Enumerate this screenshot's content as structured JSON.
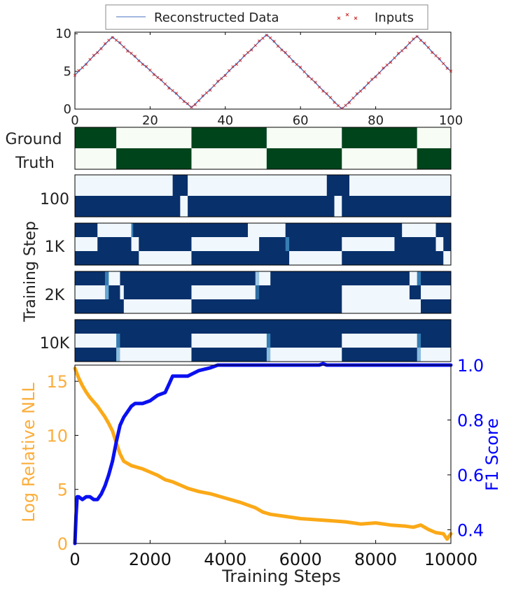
{
  "chart_data": [
    {
      "type": "line",
      "panel": "reconstruction",
      "legend": [
        "Reconstructed Data",
        "Inputs"
      ],
      "legend_position": "top-center",
      "xlim": [
        0,
        100
      ],
      "ylim": [
        0,
        10
      ],
      "xticks": [
        "0",
        "20",
        "40",
        "60",
        "80",
        "100"
      ],
      "yticks": [
        "0",
        "5",
        "10"
      ],
      "series": [
        {
          "name": "Reconstructed Data",
          "kind": "line",
          "color": "#4a6fbf",
          "x": [
            0,
            10,
            31,
            51,
            71,
            91,
            100
          ],
          "y": [
            4.5,
            9.6,
            0.2,
            9.9,
            0.0,
            9.7,
            5.0
          ]
        },
        {
          "name": "Inputs",
          "kind": "markers",
          "color": "#cc2b2b",
          "x": [
            0,
            10,
            31,
            51,
            71,
            91,
            100
          ],
          "y": [
            4.5,
            9.6,
            0.2,
            9.9,
            0.0,
            9.7,
            5.0
          ]
        }
      ]
    },
    {
      "type": "heatmap",
      "panel": "state-assignments",
      "x_range": [
        0,
        100
      ],
      "ground_truth": {
        "title_line1": "Ground",
        "title_line2": "Truth",
        "colors": [
          "#00441b",
          "#f7fcf5"
        ],
        "rows": 2,
        "segments": [
          {
            "start": 0,
            "end": 11,
            "row": 0
          },
          {
            "start": 11,
            "end": 31,
            "row": 1
          },
          {
            "start": 31,
            "end": 51,
            "row": 0
          },
          {
            "start": 51,
            "end": 71,
            "row": 1
          },
          {
            "start": 71,
            "end": 91,
            "row": 0
          },
          {
            "start": 91,
            "end": 100,
            "row": 1
          }
        ]
      },
      "y_group_label": "Training Step",
      "steps": [
        {
          "label": "100",
          "rows": 2,
          "cells": [
            {
              "row": 0,
              "start": 0,
              "end": 26,
              "v": 0.02
            },
            {
              "row": 0,
              "start": 26,
              "end": 28,
              "v": 1
            },
            {
              "row": 0,
              "start": 28,
              "end": 30,
              "v": 1
            },
            {
              "row": 0,
              "start": 30,
              "end": 67,
              "v": 0.02
            },
            {
              "row": 0,
              "start": 67,
              "end": 70,
              "v": 1
            },
            {
              "row": 0,
              "start": 70,
              "end": 73,
              "v": 1
            },
            {
              "row": 0,
              "start": 73,
              "end": 100,
              "v": 0.02
            },
            {
              "row": 1,
              "start": 0,
              "end": 28,
              "v": 1
            },
            {
              "row": 1,
              "start": 28,
              "end": 30,
              "v": 0.02
            },
            {
              "row": 1,
              "start": 30,
              "end": 69,
              "v": 1
            },
            {
              "row": 1,
              "start": 69,
              "end": 71,
              "v": 0.02
            },
            {
              "row": 1,
              "start": 71,
              "end": 100,
              "v": 1
            }
          ]
        },
        {
          "label": "1K",
          "rows": 3,
          "cells": [
            {
              "row": 0,
              "start": 0,
              "end": 6,
              "v": 1
            },
            {
              "row": 0,
              "start": 6,
              "end": 15,
              "v": 0.02
            },
            {
              "row": 0,
              "start": 15,
              "end": 15.5,
              "v": 0.6
            },
            {
              "row": 0,
              "start": 15.5,
              "end": 46,
              "v": 1
            },
            {
              "row": 0,
              "start": 46,
              "end": 56,
              "v": 0.02
            },
            {
              "row": 0,
              "start": 56,
              "end": 87,
              "v": 1
            },
            {
              "row": 0,
              "start": 87,
              "end": 96,
              "v": 0.02
            },
            {
              "row": 0,
              "start": 96,
              "end": 100,
              "v": 1
            },
            {
              "row": 1,
              "start": 0,
              "end": 6,
              "v": 0.02
            },
            {
              "row": 1,
              "start": 6,
              "end": 15,
              "v": 1
            },
            {
              "row": 1,
              "start": 15,
              "end": 17,
              "v": 0.02
            },
            {
              "row": 1,
              "start": 17,
              "end": 31,
              "v": 1
            },
            {
              "row": 1,
              "start": 31,
              "end": 49,
              "v": 0.02
            },
            {
              "row": 1,
              "start": 49,
              "end": 56,
              "v": 1
            },
            {
              "row": 1,
              "start": 56,
              "end": 57,
              "v": 0.6
            },
            {
              "row": 1,
              "start": 57,
              "end": 71,
              "v": 1
            },
            {
              "row": 1,
              "start": 71,
              "end": 85,
              "v": 0.02
            },
            {
              "row": 1,
              "start": 85,
              "end": 96,
              "v": 1
            },
            {
              "row": 1,
              "start": 96,
              "end": 98,
              "v": 0.02
            },
            {
              "row": 1,
              "start": 98,
              "end": 100,
              "v": 1
            },
            {
              "row": 2,
              "start": 0,
              "end": 17,
              "v": 1
            },
            {
              "row": 2,
              "start": 17,
              "end": 31,
              "v": 0.02
            },
            {
              "row": 2,
              "start": 31,
              "end": 57,
              "v": 1
            },
            {
              "row": 2,
              "start": 57,
              "end": 71,
              "v": 0.02
            },
            {
              "row": 2,
              "start": 71,
              "end": 98,
              "v": 1
            },
            {
              "row": 2,
              "start": 98,
              "end": 100,
              "v": 0.02
            }
          ]
        },
        {
          "label": "2K",
          "rows": 3,
          "cells": [
            {
              "row": 0,
              "start": 0,
              "end": 8,
              "v": 1
            },
            {
              "row": 0,
              "start": 8,
              "end": 9,
              "v": 0.6
            },
            {
              "row": 0,
              "start": 9,
              "end": 12,
              "v": 0.02
            },
            {
              "row": 0,
              "start": 12,
              "end": 48,
              "v": 1
            },
            {
              "row": 0,
              "start": 48,
              "end": 49,
              "v": 0.25
            },
            {
              "row": 0,
              "start": 49,
              "end": 52,
              "v": 0.02
            },
            {
              "row": 0,
              "start": 52,
              "end": 89,
              "v": 1
            },
            {
              "row": 0,
              "start": 89,
              "end": 91,
              "v": 0.02
            },
            {
              "row": 0,
              "start": 91,
              "end": 92,
              "v": 0.6
            },
            {
              "row": 0,
              "start": 92,
              "end": 100,
              "v": 1
            },
            {
              "row": 1,
              "start": 0,
              "end": 8,
              "v": 0.02
            },
            {
              "row": 1,
              "start": 8,
              "end": 9,
              "v": 0.4
            },
            {
              "row": 1,
              "start": 9,
              "end": 12,
              "v": 1
            },
            {
              "row": 1,
              "start": 12,
              "end": 13,
              "v": 0.02
            },
            {
              "row": 1,
              "start": 13,
              "end": 31,
              "v": 1
            },
            {
              "row": 1,
              "start": 31,
              "end": 48,
              "v": 0.02
            },
            {
              "row": 1,
              "start": 48,
              "end": 49,
              "v": 0.7
            },
            {
              "row": 1,
              "start": 49,
              "end": 52,
              "v": 1
            },
            {
              "row": 1,
              "start": 52,
              "end": 71,
              "v": 1
            },
            {
              "row": 1,
              "start": 71,
              "end": 89,
              "v": 0.02
            },
            {
              "row": 1,
              "start": 89,
              "end": 92,
              "v": 1
            },
            {
              "row": 1,
              "start": 92,
              "end": 100,
              "v": 0.02
            },
            {
              "row": 2,
              "start": 0,
              "end": 13,
              "v": 1
            },
            {
              "row": 2,
              "start": 13,
              "end": 31,
              "v": 0.02
            },
            {
              "row": 2,
              "start": 31,
              "end": 71,
              "v": 1
            },
            {
              "row": 2,
              "start": 71,
              "end": 92,
              "v": 0.02
            },
            {
              "row": 2,
              "start": 92,
              "end": 100,
              "v": 1
            }
          ]
        },
        {
          "label": "10K",
          "rows": 3,
          "cells": [
            {
              "row": 0,
              "start": 0,
              "end": 100,
              "v": 1
            },
            {
              "row": 1,
              "start": 0,
              "end": 11,
              "v": 0.02
            },
            {
              "row": 1,
              "start": 11,
              "end": 12,
              "v": 0.6
            },
            {
              "row": 1,
              "start": 12,
              "end": 31,
              "v": 1
            },
            {
              "row": 1,
              "start": 31,
              "end": 51,
              "v": 0.02
            },
            {
              "row": 1,
              "start": 51,
              "end": 52,
              "v": 0.6
            },
            {
              "row": 1,
              "start": 52,
              "end": 71,
              "v": 1
            },
            {
              "row": 1,
              "start": 71,
              "end": 91,
              "v": 0.02
            },
            {
              "row": 1,
              "start": 91,
              "end": 92,
              "v": 0.6
            },
            {
              "row": 1,
              "start": 92,
              "end": 100,
              "v": 1
            },
            {
              "row": 2,
              "start": 0,
              "end": 11,
              "v": 1
            },
            {
              "row": 2,
              "start": 11,
              "end": 12,
              "v": 0.3
            },
            {
              "row": 2,
              "start": 12,
              "end": 31,
              "v": 0.02
            },
            {
              "row": 2,
              "start": 31,
              "end": 51,
              "v": 1
            },
            {
              "row": 2,
              "start": 51,
              "end": 52,
              "v": 0.3
            },
            {
              "row": 2,
              "start": 52,
              "end": 71,
              "v": 0.02
            },
            {
              "row": 2,
              "start": 71,
              "end": 91,
              "v": 1
            },
            {
              "row": 2,
              "start": 91,
              "end": 92,
              "v": 0.3
            },
            {
              "row": 2,
              "start": 92,
              "end": 100,
              "v": 0.02
            }
          ]
        }
      ]
    },
    {
      "type": "line",
      "panel": "training-curves",
      "xlabel": "Training Steps",
      "xlim": [
        0,
        10000
      ],
      "xticks": [
        "0",
        "2000",
        "4000",
        "6000",
        "8000",
        "10000"
      ],
      "left_axis": {
        "label": "Log Relative NLL",
        "ylim": [
          0,
          16.5
        ],
        "ticks": [
          "0",
          "5",
          "10",
          "15"
        ],
        "color": "#fbae3c"
      },
      "right_axis": {
        "label": "F1 Score",
        "ylim": [
          0.35,
          1.0
        ],
        "ticks": [
          "0.4",
          "0.6",
          "0.8",
          "1.0"
        ],
        "color": "#0000ff"
      },
      "series": [
        {
          "name": "Log Relative NLL",
          "axis": "left",
          "color": "#fba918",
          "x": [
            0,
            100,
            200,
            300,
            400,
            500,
            600,
            700,
            800,
            900,
            1000,
            1100,
            1200,
            1300,
            1500,
            1800,
            2000,
            2200,
            2400,
            2600,
            2800,
            3000,
            3300,
            3600,
            4000,
            4400,
            4800,
            5000,
            5200,
            5600,
            6000,
            6400,
            6800,
            7200,
            7600,
            8000,
            8400,
            8800,
            9000,
            9200,
            9400,
            9600,
            9800,
            9900,
            10000
          ],
          "y": [
            16.2,
            15.3,
            14.6,
            14.0,
            13.5,
            13.1,
            12.7,
            12.2,
            11.7,
            11.1,
            10.4,
            9.3,
            8.3,
            7.6,
            7.2,
            6.9,
            6.6,
            6.3,
            5.9,
            5.7,
            5.4,
            5.1,
            4.8,
            4.6,
            4.2,
            3.8,
            3.3,
            2.9,
            2.7,
            2.5,
            2.3,
            2.2,
            2.1,
            2.0,
            1.8,
            1.9,
            1.7,
            1.6,
            1.5,
            1.7,
            1.3,
            1.0,
            0.9,
            0.4,
            0.9
          ]
        },
        {
          "name": "F1 Score",
          "axis": "right",
          "color": "#0a10f0",
          "x": [
            0,
            30,
            60,
            100,
            200,
            300,
            400,
            500,
            600,
            700,
            800,
            900,
            1000,
            1100,
            1200,
            1300,
            1400,
            1500,
            1600,
            1800,
            2000,
            2200,
            2400,
            2500,
            2600,
            3000,
            3300,
            3600,
            3800,
            4000,
            5000,
            6000,
            6500,
            6600,
            6700,
            7000,
            8000,
            9000,
            10000
          ],
          "y": [
            0.35,
            0.45,
            0.52,
            0.52,
            0.51,
            0.52,
            0.52,
            0.51,
            0.51,
            0.53,
            0.56,
            0.6,
            0.65,
            0.72,
            0.78,
            0.81,
            0.83,
            0.85,
            0.86,
            0.86,
            0.87,
            0.89,
            0.9,
            0.93,
            0.96,
            0.96,
            0.98,
            0.99,
            1.0,
            1.0,
            1.0,
            1.0,
            1.0,
            1.01,
            1.0,
            1.0,
            1.0,
            1.0,
            1.0
          ]
        }
      ]
    }
  ]
}
